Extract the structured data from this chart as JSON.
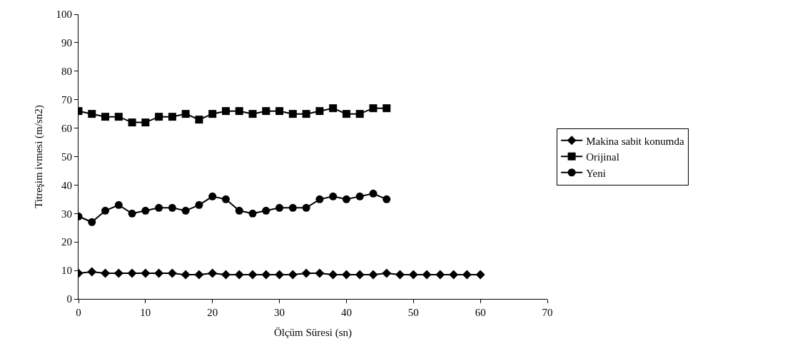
{
  "chart_data": {
    "type": "line",
    "xlabel": "Ölçüm Süresi (sn)",
    "ylabel": "Titreşim ivmesi (m/sn2)",
    "xlim": [
      0,
      70
    ],
    "xticks": [
      0,
      10,
      20,
      30,
      40,
      50,
      60,
      70
    ],
    "ylim": [
      0,
      100
    ],
    "yticks": [
      0,
      10,
      20,
      30,
      40,
      50,
      60,
      70,
      80,
      90,
      100
    ],
    "legend": "right",
    "line_style": "solid",
    "series": [
      {
        "name": "Makina sabit konumda",
        "color": "#000000",
        "marker": "diamond",
        "x": [
          0,
          2,
          4,
          6,
          8,
          10,
          12,
          14,
          16,
          18,
          20,
          22,
          24,
          26,
          28,
          30,
          32,
          34,
          36,
          38,
          40,
          42,
          44,
          46,
          48,
          50,
          52,
          54,
          56,
          58,
          60
        ],
        "values": [
          9,
          9.5,
          9,
          9,
          9,
          9,
          9,
          9,
          8.5,
          8.5,
          9,
          8.5,
          8.5,
          8.5,
          8.5,
          8.5,
          8.5,
          9,
          9,
          8.5,
          8.5,
          8.5,
          8.5,
          9,
          8.5,
          8.5,
          8.5,
          8.5,
          8.5,
          8.5,
          8.5
        ]
      },
      {
        "name": "Orijinal",
        "color": "#000000",
        "marker": "square",
        "x": [
          0,
          2,
          4,
          6,
          8,
          10,
          12,
          14,
          16,
          18,
          20,
          22,
          24,
          26,
          28,
          30,
          32,
          34,
          36,
          38,
          40,
          42,
          44,
          46
        ],
        "values": [
          66,
          65,
          64,
          64,
          62,
          62,
          64,
          64,
          65,
          63,
          65,
          66,
          66,
          65,
          66,
          66,
          65,
          65,
          66,
          67,
          65,
          65,
          67,
          67
        ]
      },
      {
        "name": "Yeni",
        "color": "#000000",
        "marker": "circle",
        "x": [
          0,
          2,
          4,
          6,
          8,
          10,
          12,
          14,
          16,
          18,
          20,
          22,
          24,
          26,
          28,
          30,
          32,
          34,
          36,
          38,
          40,
          42,
          44,
          46
        ],
        "values": [
          29,
          27,
          31,
          33,
          30,
          31,
          32,
          32,
          31,
          33,
          36,
          35,
          31,
          30,
          31,
          32,
          32,
          32,
          35,
          36,
          35,
          36,
          37,
          35
        ]
      }
    ]
  }
}
